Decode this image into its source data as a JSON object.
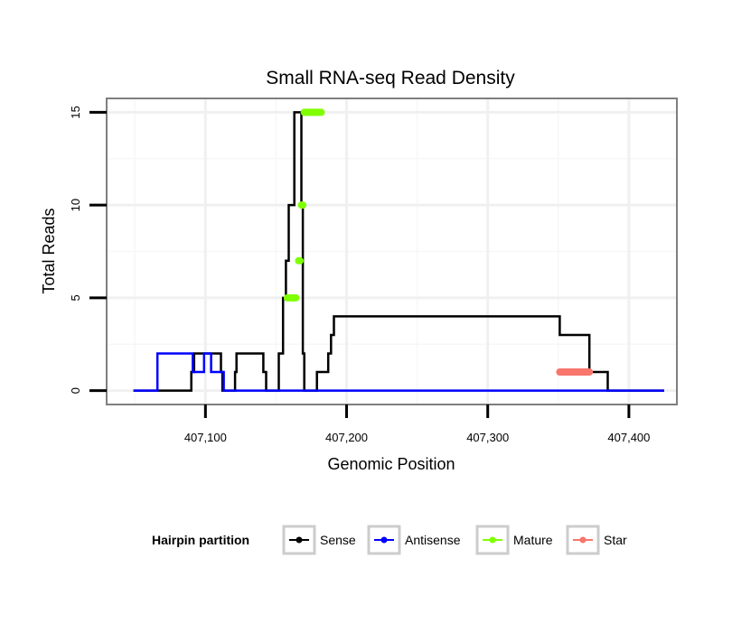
{
  "chart_data": {
    "type": "line",
    "title": "Small RNA-seq Read Density",
    "xlabel": "Genomic Position",
    "ylabel": "Total Reads",
    "xlim": [
      407030,
      407434
    ],
    "ylim": [
      -0.75,
      15.75
    ],
    "x_ticks": [
      {
        "value": 407100,
        "label": "407,100"
      },
      {
        "value": 407200,
        "label": "407,200"
      },
      {
        "value": 407300,
        "label": "407,300"
      },
      {
        "value": 407400,
        "label": "407,400"
      }
    ],
    "y_ticks": [
      {
        "value": 0,
        "label": "0"
      },
      {
        "value": 5,
        "label": "5"
      },
      {
        "value": 10,
        "label": "10"
      },
      {
        "value": 15,
        "label": "15"
      }
    ],
    "grid": true,
    "legend": {
      "title": "Hairpin partition",
      "placement": "bottom",
      "entries": [
        "Sense",
        "Antisense",
        "Mature",
        "Star"
      ]
    },
    "series": [
      {
        "name": "Sense",
        "color": "#000000",
        "style": "step-line",
        "x": [
          407049,
          407090,
          407090,
          407092,
          407092,
          407111,
          407111,
          407112,
          407112,
          407121,
          407121,
          407122,
          407122,
          407141,
          407141,
          407143,
          407143,
          407152,
          407152,
          407155,
          407155,
          407157,
          407157,
          407159,
          407159,
          407163,
          407163,
          407168,
          407168,
          407169,
          407169,
          407170,
          407170,
          407179,
          407179,
          407187,
          407187,
          407189,
          407189,
          407191,
          407191,
          407351,
          407351,
          407372,
          407372,
          407385,
          407385,
          407388,
          407388,
          407390,
          407390,
          407401,
          407401,
          407406,
          407406,
          407408,
          407408,
          407425
        ],
        "y": [
          0,
          0,
          1,
          1,
          2,
          2,
          1,
          1,
          0,
          0,
          1,
          1,
          2,
          2,
          1,
          1,
          0,
          0,
          2,
          2,
          5,
          5,
          7,
          7,
          10,
          10,
          15,
          15,
          10,
          10,
          2,
          2,
          0,
          0,
          1,
          1,
          2,
          2,
          3,
          3,
          4,
          4,
          3,
          3,
          1,
          1,
          0,
          0,
          0,
          0,
          0,
          0,
          0,
          0,
          0,
          0,
          0,
          0
        ]
      },
      {
        "name": "Antisense",
        "color": "#0000ff",
        "style": "step-line",
        "x": [
          407049,
          407066,
          407066,
          407091,
          407091,
          407099,
          407099,
          407104,
          407104,
          407113,
          407113,
          407124,
          407124,
          407425
        ],
        "y": [
          0,
          0,
          2,
          2,
          1,
          1,
          2,
          2,
          1,
          1,
          0,
          0,
          0,
          0
        ]
      },
      {
        "name": "Mature",
        "color": "#7fff00",
        "style": "point-runs",
        "segments": [
          {
            "x": [
              407158,
              407164
            ],
            "y": 5
          },
          {
            "x": [
              407166,
              407167
            ],
            "y": 7
          },
          {
            "x": [
              407168,
              407169
            ],
            "y": 10
          },
          {
            "x": [
              407170,
              407182
            ],
            "y": 15
          }
        ]
      },
      {
        "name": "Star",
        "color": "#f8766d",
        "style": "point-runs",
        "segments": [
          {
            "x": [
              407351,
              407372
            ],
            "y": 1
          }
        ]
      }
    ]
  }
}
